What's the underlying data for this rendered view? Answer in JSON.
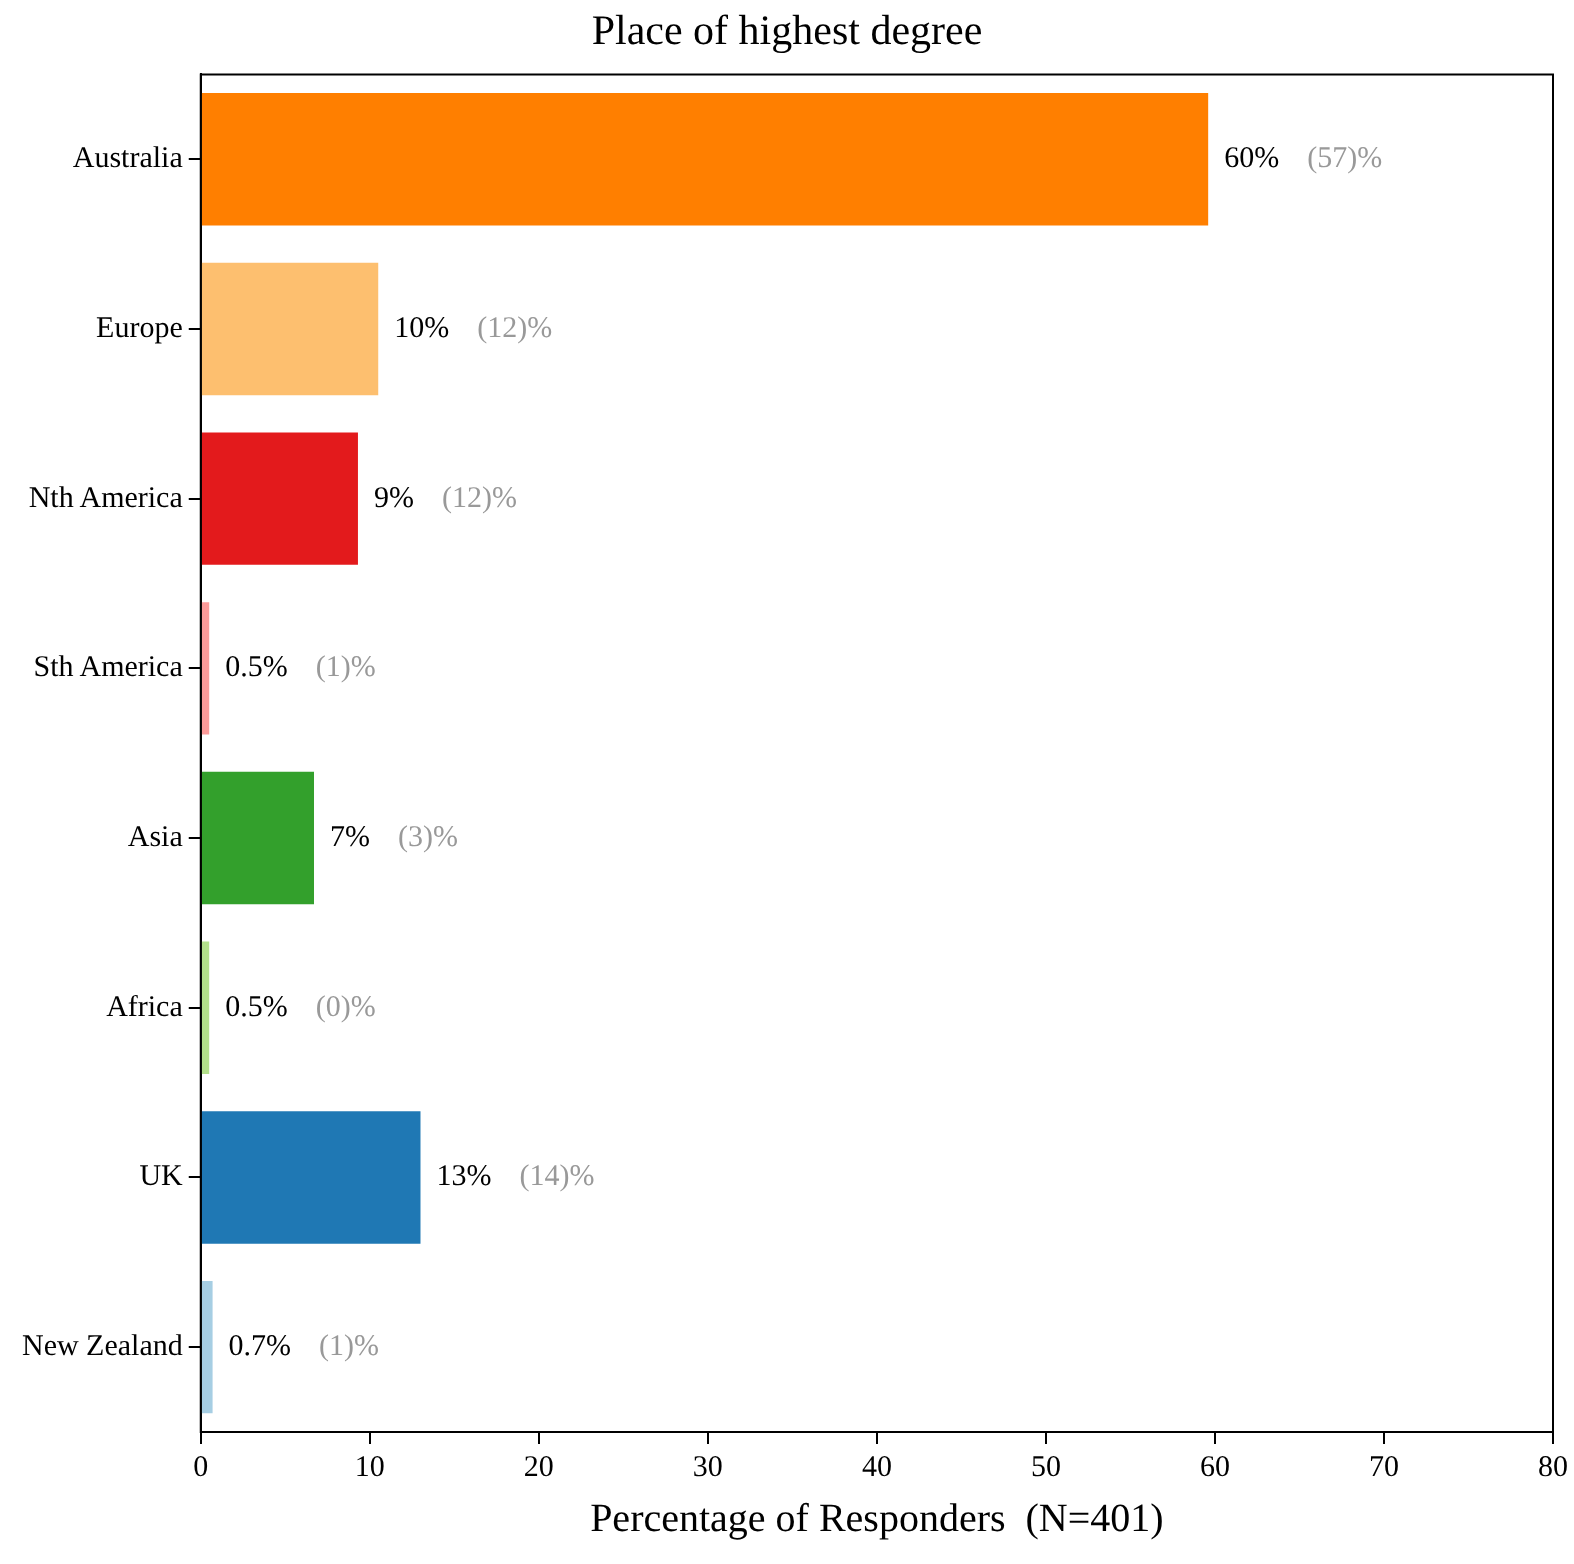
{
  "chart_data": {
    "type": "bar",
    "orientation": "horizontal",
    "title": "Place of highest degree",
    "xlabel": "Percentage of Responders  (N=401)",
    "categories": [
      "Australia",
      "Europe",
      "Nth America",
      "Sth America",
      "Asia",
      "Africa",
      "UK",
      "New Zealand"
    ],
    "values": [
      59.6,
      10.5,
      9.3,
      0.5,
      6.7,
      0.5,
      13,
      0.7
    ],
    "colors": [
      "#ff7f00",
      "#fdbf6f",
      "#e31a1c",
      "#fb9a99",
      "#33a02c",
      "#b2df8a",
      "#1f78b4",
      "#a6cee3"
    ],
    "value_labels": [
      "60%",
      "10%",
      "9%",
      "0.5%",
      "7%",
      "0.5%",
      "13%",
      "0.7%"
    ],
    "annotations": [
      "(57)%",
      "(12)%",
      "(12)%",
      "(1)%",
      "(3)%",
      "(0)%",
      "(14)%",
      "(1)%"
    ],
    "xlim": [
      0,
      80
    ],
    "xticks": [
      0,
      10,
      20,
      30,
      40,
      50,
      60,
      70,
      80
    ],
    "grid": false,
    "legend": false
  }
}
